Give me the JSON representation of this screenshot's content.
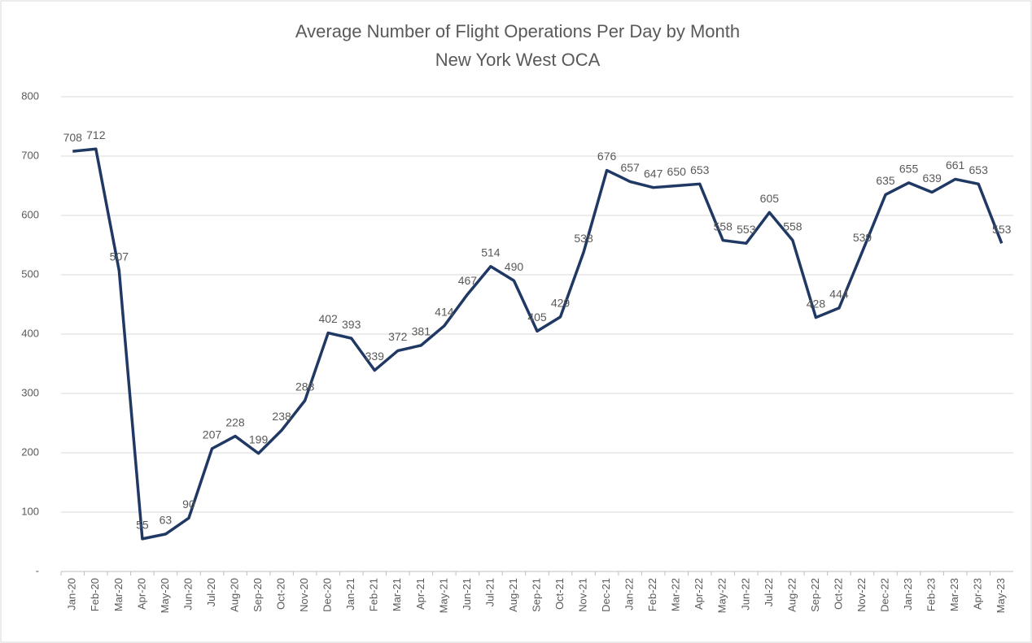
{
  "chart_data": {
    "type": "line",
    "title": "Average Number of Flight Operations Per Day by Month",
    "subtitle": "New York West OCA",
    "categories": [
      "Jan-20",
      "Feb-20",
      "Mar-20",
      "Apr-20",
      "May-20",
      "Jun-20",
      "Jul-20",
      "Aug-20",
      "Sep-20",
      "Oct-20",
      "Nov-20",
      "Dec-20",
      "Jan-21",
      "Feb-21",
      "Mar-21",
      "Apr-21",
      "May-21",
      "Jun-21",
      "Jul-21",
      "Aug-21",
      "Sep-21",
      "Oct-21",
      "Nov-21",
      "Dec-21",
      "Jan-22",
      "Feb-22",
      "Mar-22",
      "Apr-22",
      "May-22",
      "Jun-22",
      "Jul-22",
      "Aug-22",
      "Sep-22",
      "Oct-22",
      "Nov-22",
      "Dec-22",
      "Jan-23",
      "Feb-23",
      "Mar-23",
      "Apr-23",
      "May-23"
    ],
    "values": [
      708,
      712,
      507,
      55,
      63,
      90,
      207,
      228,
      199,
      238,
      288,
      402,
      393,
      339,
      372,
      381,
      414,
      467,
      514,
      490,
      405,
      429,
      538,
      676,
      657,
      647,
      650,
      653,
      558,
      553,
      605,
      558,
      428,
      444,
      539,
      635,
      655,
      639,
      661,
      653,
      553
    ],
    "color": "#203864",
    "ylim": [
      0,
      800
    ],
    "yticks": [
      {
        "value": 0,
        "label": "-"
      },
      100,
      200,
      300,
      400,
      500,
      600,
      700,
      800
    ],
    "grid": true
  }
}
